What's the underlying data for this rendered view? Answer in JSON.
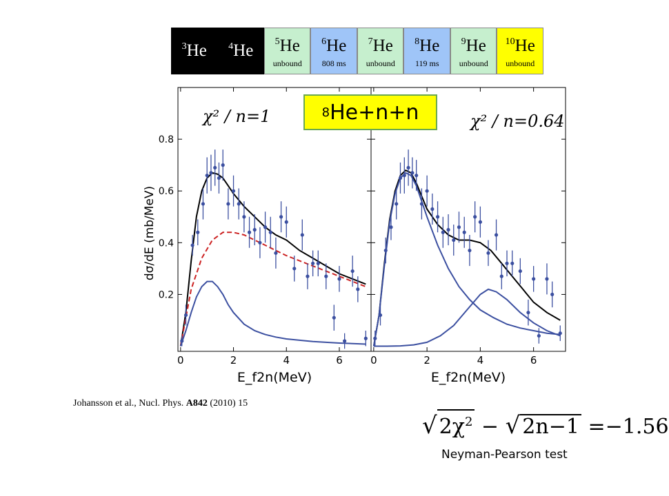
{
  "isotopes": [
    {
      "label": "3He",
      "mass": "3",
      "el": "He",
      "sub": "",
      "color": "#000000"
    },
    {
      "label": "4He",
      "mass": "4",
      "el": "He",
      "sub": "",
      "color": "#000000"
    },
    {
      "label": "5He",
      "mass": "5",
      "el": "He",
      "sub": "unbound",
      "color": "#c6efce"
    },
    {
      "label": "6He",
      "mass": "6",
      "el": "He",
      "sub": "808 ms",
      "color": "#9fc5f8"
    },
    {
      "label": "7He",
      "mass": "7",
      "el": "He",
      "sub": "unbound",
      "color": "#c6efce"
    },
    {
      "label": "8He",
      "mass": "8",
      "el": "He",
      "sub": "119 ms",
      "color": "#9fc5f8"
    },
    {
      "label": "9He",
      "mass": "9",
      "el": "He",
      "sub": "unbound",
      "color": "#c6efce"
    },
    {
      "label": "10He",
      "mass": "10",
      "el": "He",
      "sub": "unbound",
      "color": "#ffff00"
    }
  ],
  "title_box": {
    "mass": "8",
    "text": "He+n+n",
    "color": "#ffff00"
  },
  "citation": {
    "authors": "Johansson et al., Nucl. Phys. ",
    "volume": "A842",
    "rest": " (2010) 15"
  },
  "formula": {
    "lhs1": "2χ",
    "exp": "2",
    "minus": " − ",
    "lhs2": "2n−1",
    "rhs": " =−1.56"
  },
  "test_label": "Neyman-Pearson test",
  "chart_data": [
    {
      "type": "scatter",
      "panel": "left",
      "annotation": "χ² / n=1",
      "xlabel": "E_f2n(MeV)",
      "ylabel": "dσ/dE (mb/MeV)",
      "xlim": [
        -0.1,
        7.2
      ],
      "ylim": [
        -0.02,
        1.0
      ],
      "xticks": [
        0,
        2,
        4,
        6
      ],
      "yticks": [
        0.2,
        0.4,
        0.6,
        0.8
      ],
      "points": [
        {
          "x": 0.05,
          "y": 0.02,
          "err": 0.02
        },
        {
          "x": 0.2,
          "y": 0.12,
          "err": 0.04
        },
        {
          "x": 0.45,
          "y": 0.39,
          "err": 0.04
        },
        {
          "x": 0.65,
          "y": 0.44,
          "err": 0.05
        },
        {
          "x": 0.85,
          "y": 0.55,
          "err": 0.06
        },
        {
          "x": 1.0,
          "y": 0.66,
          "err": 0.07
        },
        {
          "x": 1.15,
          "y": 0.67,
          "err": 0.07
        },
        {
          "x": 1.3,
          "y": 0.69,
          "err": 0.07
        },
        {
          "x": 1.45,
          "y": 0.65,
          "err": 0.06
        },
        {
          "x": 1.6,
          "y": 0.7,
          "err": 0.06
        },
        {
          "x": 1.8,
          "y": 0.55,
          "err": 0.06
        },
        {
          "x": 2.0,
          "y": 0.6,
          "err": 0.06
        },
        {
          "x": 2.2,
          "y": 0.55,
          "err": 0.06
        },
        {
          "x": 2.4,
          "y": 0.5,
          "err": 0.06
        },
        {
          "x": 2.6,
          "y": 0.44,
          "err": 0.06
        },
        {
          "x": 2.8,
          "y": 0.45,
          "err": 0.06
        },
        {
          "x": 3.0,
          "y": 0.4,
          "err": 0.06
        },
        {
          "x": 3.2,
          "y": 0.46,
          "err": 0.06
        },
        {
          "x": 3.4,
          "y": 0.44,
          "err": 0.06
        },
        {
          "x": 3.6,
          "y": 0.36,
          "err": 0.06
        },
        {
          "x": 3.8,
          "y": 0.5,
          "err": 0.06
        },
        {
          "x": 4.0,
          "y": 0.48,
          "err": 0.06
        },
        {
          "x": 4.3,
          "y": 0.3,
          "err": 0.05
        },
        {
          "x": 4.6,
          "y": 0.43,
          "err": 0.06
        },
        {
          "x": 4.8,
          "y": 0.27,
          "err": 0.05
        },
        {
          "x": 5.0,
          "y": 0.32,
          "err": 0.05
        },
        {
          "x": 5.2,
          "y": 0.32,
          "err": 0.05
        },
        {
          "x": 5.5,
          "y": 0.27,
          "err": 0.05
        },
        {
          "x": 5.8,
          "y": 0.11,
          "err": 0.05
        },
        {
          "x": 6.0,
          "y": 0.26,
          "err": 0.05
        },
        {
          "x": 6.2,
          "y": 0.02,
          "err": 0.03
        },
        {
          "x": 6.5,
          "y": 0.29,
          "err": 0.06
        },
        {
          "x": 6.7,
          "y": 0.22,
          "err": 0.05
        },
        {
          "x": 7.0,
          "y": 0.03,
          "err": 0.03
        }
      ],
      "curves": [
        {
          "style": "black-solid",
          "color": "#000000",
          "x": [
            0,
            0.2,
            0.4,
            0.6,
            0.8,
            1.0,
            1.2,
            1.4,
            1.6,
            1.8,
            2.0,
            2.4,
            2.8,
            3.2,
            3.6,
            4.0,
            4.5,
            5.0,
            5.5,
            6.0,
            6.5,
            7.0
          ],
          "y": [
            0.0,
            0.13,
            0.33,
            0.5,
            0.6,
            0.65,
            0.67,
            0.665,
            0.65,
            0.62,
            0.59,
            0.54,
            0.5,
            0.46,
            0.43,
            0.41,
            0.37,
            0.34,
            0.31,
            0.28,
            0.26,
            0.24
          ]
        },
        {
          "style": "red-dashed",
          "color": "#cc2222",
          "x": [
            0,
            0.4,
            0.8,
            1.2,
            1.6,
            2.0,
            2.4,
            2.8,
            3.2,
            3.6,
            4.0,
            4.5,
            5.0,
            5.5,
            6.0,
            6.5,
            7.0
          ],
          "y": [
            0.0,
            0.22,
            0.34,
            0.41,
            0.44,
            0.44,
            0.43,
            0.41,
            0.39,
            0.37,
            0.35,
            0.33,
            0.31,
            0.29,
            0.27,
            0.25,
            0.23
          ]
        },
        {
          "style": "blue-solid",
          "color": "#3b4fa0",
          "x": [
            0,
            0.2,
            0.4,
            0.6,
            0.8,
            1.0,
            1.2,
            1.4,
            1.6,
            1.8,
            2.0,
            2.4,
            2.8,
            3.2,
            3.6,
            4.0,
            5.0,
            6.0,
            7.0
          ],
          "y": [
            0.0,
            0.06,
            0.13,
            0.19,
            0.23,
            0.25,
            0.25,
            0.23,
            0.2,
            0.16,
            0.13,
            0.085,
            0.06,
            0.045,
            0.035,
            0.028,
            0.018,
            0.012,
            0.008
          ]
        }
      ]
    },
    {
      "type": "scatter",
      "panel": "right",
      "annotation": "χ² / n=0.64",
      "xlabel": "E_f2n(MeV)",
      "ylabel": "",
      "xlim": [
        -0.1,
        7.2
      ],
      "ylim": [
        -0.02,
        1.0
      ],
      "xticks": [
        0,
        2,
        4,
        6
      ],
      "yticks": [
        0.2,
        0.4,
        0.6,
        0.8
      ],
      "points": [
        {
          "x": 0.05,
          "y": 0.03,
          "err": 0.03
        },
        {
          "x": 0.25,
          "y": 0.12,
          "err": 0.04
        },
        {
          "x": 0.45,
          "y": 0.37,
          "err": 0.05
        },
        {
          "x": 0.65,
          "y": 0.46,
          "err": 0.05
        },
        {
          "x": 0.85,
          "y": 0.55,
          "err": 0.06
        },
        {
          "x": 1.0,
          "y": 0.65,
          "err": 0.06
        },
        {
          "x": 1.15,
          "y": 0.66,
          "err": 0.07
        },
        {
          "x": 1.3,
          "y": 0.69,
          "err": 0.07
        },
        {
          "x": 1.45,
          "y": 0.67,
          "err": 0.06
        },
        {
          "x": 1.6,
          "y": 0.66,
          "err": 0.06
        },
        {
          "x": 1.8,
          "y": 0.55,
          "err": 0.06
        },
        {
          "x": 2.0,
          "y": 0.6,
          "err": 0.06
        },
        {
          "x": 2.2,
          "y": 0.53,
          "err": 0.06
        },
        {
          "x": 2.4,
          "y": 0.5,
          "err": 0.06
        },
        {
          "x": 2.6,
          "y": 0.44,
          "err": 0.06
        },
        {
          "x": 2.8,
          "y": 0.45,
          "err": 0.06
        },
        {
          "x": 3.0,
          "y": 0.41,
          "err": 0.06
        },
        {
          "x": 3.2,
          "y": 0.46,
          "err": 0.06
        },
        {
          "x": 3.4,
          "y": 0.44,
          "err": 0.06
        },
        {
          "x": 3.6,
          "y": 0.37,
          "err": 0.06
        },
        {
          "x": 3.8,
          "y": 0.5,
          "err": 0.06
        },
        {
          "x": 4.0,
          "y": 0.48,
          "err": 0.06
        },
        {
          "x": 4.3,
          "y": 0.36,
          "err": 0.05
        },
        {
          "x": 4.6,
          "y": 0.43,
          "err": 0.06
        },
        {
          "x": 4.8,
          "y": 0.27,
          "err": 0.05
        },
        {
          "x": 5.0,
          "y": 0.32,
          "err": 0.05
        },
        {
          "x": 5.2,
          "y": 0.32,
          "err": 0.05
        },
        {
          "x": 5.5,
          "y": 0.29,
          "err": 0.05
        },
        {
          "x": 5.8,
          "y": 0.13,
          "err": 0.05
        },
        {
          "x": 6.0,
          "y": 0.26,
          "err": 0.05
        },
        {
          "x": 6.2,
          "y": 0.04,
          "err": 0.03
        },
        {
          "x": 6.5,
          "y": 0.26,
          "err": 0.06
        },
        {
          "x": 6.7,
          "y": 0.2,
          "err": 0.05
        },
        {
          "x": 7.0,
          "y": 0.05,
          "err": 0.03
        }
      ],
      "curves": [
        {
          "style": "black-solid",
          "color": "#000000",
          "x": [
            0,
            0.2,
            0.4,
            0.6,
            0.8,
            1.0,
            1.2,
            1.4,
            1.6,
            1.8,
            2.0,
            2.4,
            2.8,
            3.2,
            3.6,
            4.0,
            4.4,
            4.8,
            5.2,
            5.6,
            6.0,
            6.5,
            7.0
          ],
          "y": [
            0.0,
            0.12,
            0.32,
            0.49,
            0.6,
            0.66,
            0.68,
            0.67,
            0.63,
            0.58,
            0.53,
            0.47,
            0.43,
            0.41,
            0.41,
            0.4,
            0.37,
            0.32,
            0.27,
            0.22,
            0.17,
            0.13,
            0.1
          ]
        },
        {
          "style": "blue-solid",
          "color": "#3b4fa0",
          "x": [
            0,
            0.2,
            0.4,
            0.6,
            0.8,
            1.0,
            1.2,
            1.4,
            1.6,
            1.8,
            2.0,
            2.4,
            2.8,
            3.2,
            3.6,
            4.0,
            4.5,
            5.0,
            5.5,
            6.0,
            6.5,
            7.0
          ],
          "y": [
            0.0,
            0.12,
            0.31,
            0.48,
            0.59,
            0.65,
            0.67,
            0.66,
            0.62,
            0.56,
            0.5,
            0.39,
            0.3,
            0.23,
            0.18,
            0.14,
            0.11,
            0.085,
            0.07,
            0.06,
            0.05,
            0.045
          ]
        },
        {
          "style": "blue-solid",
          "color": "#3b4fa0",
          "x": [
            0,
            0.5,
            1.0,
            1.5,
            2.0,
            2.5,
            3.0,
            3.5,
            4.0,
            4.3,
            4.6,
            5.0,
            5.5,
            6.0,
            6.5,
            7.0
          ],
          "y": [
            0.0,
            0.0,
            0.001,
            0.005,
            0.015,
            0.04,
            0.08,
            0.14,
            0.2,
            0.22,
            0.21,
            0.18,
            0.13,
            0.09,
            0.06,
            0.04
          ]
        }
      ]
    }
  ]
}
